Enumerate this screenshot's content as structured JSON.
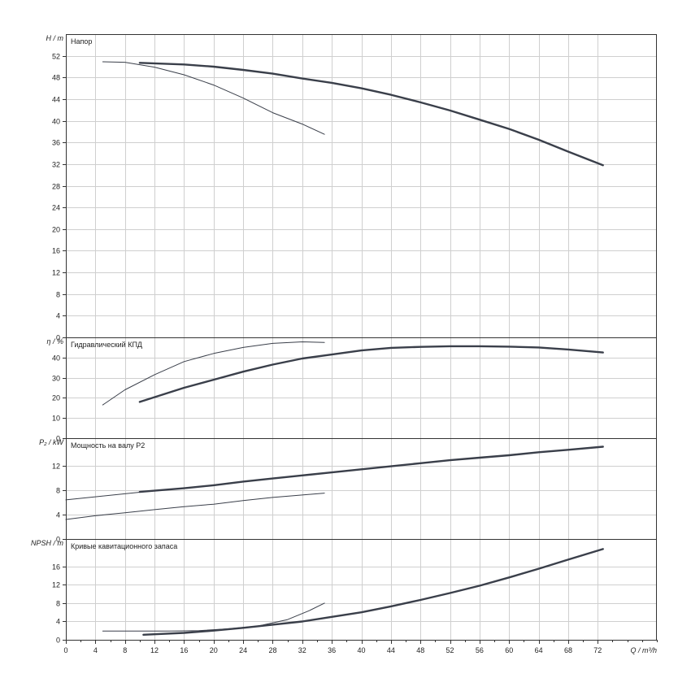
{
  "chart_data": {
    "type": "line",
    "x_axis": {
      "label": "Q / m³/h",
      "range": [
        0,
        80
      ],
      "ticks": [
        0,
        4,
        8,
        12,
        16,
        20,
        24,
        28,
        32,
        36,
        40,
        44,
        48,
        52,
        56,
        60,
        64,
        68,
        72
      ],
      "minor_step": 2
    },
    "grid": true,
    "panels": [
      {
        "id": "head",
        "title": "Напор",
        "ylabel": "H / m",
        "ylim": [
          0,
          56
        ],
        "yticks": [
          0,
          4,
          8,
          12,
          16,
          20,
          24,
          28,
          32,
          36,
          40,
          44,
          48,
          52
        ],
        "series": [
          {
            "style": "thick",
            "points": [
              [
                10,
                50.7
              ],
              [
                16,
                50.4
              ],
              [
                20,
                50.0
              ],
              [
                24,
                49.4
              ],
              [
                28,
                48.7
              ],
              [
                32,
                47.8
              ],
              [
                36,
                47.0
              ],
              [
                40,
                46.0
              ],
              [
                44,
                44.8
              ],
              [
                48,
                43.4
              ],
              [
                52,
                41.9
              ],
              [
                56,
                40.2
              ],
              [
                60,
                38.5
              ],
              [
                64,
                36.5
              ],
              [
                68,
                34.3
              ],
              [
                72.7,
                31.8
              ]
            ]
          },
          {
            "style": "thin",
            "points": [
              [
                5,
                50.9
              ],
              [
                8,
                50.8
              ],
              [
                12,
                49.9
              ],
              [
                16,
                48.5
              ],
              [
                20,
                46.6
              ],
              [
                24,
                44.2
              ],
              [
                28,
                41.5
              ],
              [
                32,
                39.4
              ],
              [
                35,
                37.5
              ]
            ]
          }
        ]
      },
      {
        "id": "efficiency",
        "title": "Гидравлический КПД",
        "ylabel": "η / %",
        "ylim": [
          0,
          50
        ],
        "yticks": [
          0,
          10,
          20,
          30,
          40
        ],
        "series": [
          {
            "style": "thick",
            "points": [
              [
                10,
                18
              ],
              [
                16,
                25
              ],
              [
                20,
                29
              ],
              [
                24,
                33
              ],
              [
                28,
                36.5
              ],
              [
                32,
                39.5
              ],
              [
                36,
                41.5
              ],
              [
                40,
                43.5
              ],
              [
                44,
                44.8
              ],
              [
                48,
                45.3
              ],
              [
                52,
                45.6
              ],
              [
                56,
                45.6
              ],
              [
                60,
                45.4
              ],
              [
                64,
                45.0
              ],
              [
                68,
                44.0
              ],
              [
                72.7,
                42.5
              ]
            ]
          },
          {
            "style": "thin",
            "points": [
              [
                5,
                16.5
              ],
              [
                8,
                24
              ],
              [
                12,
                31.5
              ],
              [
                16,
                38
              ],
              [
                20,
                42
              ],
              [
                24,
                45
              ],
              [
                28,
                47
              ],
              [
                32,
                47.8
              ],
              [
                35,
                47.5
              ]
            ]
          }
        ]
      },
      {
        "id": "power",
        "title": "Мощность на валу P2",
        "ylabel": "P₂ / kW",
        "ylim": [
          0,
          16.5
        ],
        "yticks": [
          0,
          4,
          8,
          12
        ],
        "series": [
          {
            "style": "thick",
            "points": [
              [
                10,
                7.7
              ],
              [
                16,
                8.3
              ],
              [
                20,
                8.8
              ],
              [
                24,
                9.4
              ],
              [
                28,
                9.9
              ],
              [
                32,
                10.4
              ],
              [
                36,
                10.9
              ],
              [
                40,
                11.4
              ],
              [
                44,
                11.9
              ],
              [
                48,
                12.4
              ],
              [
                52,
                12.9
              ],
              [
                56,
                13.3
              ],
              [
                60,
                13.7
              ],
              [
                64,
                14.2
              ],
              [
                68,
                14.6
              ],
              [
                72.7,
                15.1
              ]
            ]
          },
          {
            "style": "thin",
            "points": [
              [
                0,
                3.2
              ],
              [
                4,
                3.8
              ],
              [
                8,
                4.3
              ],
              [
                12,
                4.8
              ],
              [
                16,
                5.3
              ],
              [
                20,
                5.7
              ],
              [
                24,
                6.3
              ],
              [
                28,
                6.8
              ],
              [
                32,
                7.2
              ],
              [
                35,
                7.5
              ]
            ]
          },
          {
            "style": "thin",
            "points": [
              [
                0,
                6.4
              ],
              [
                4,
                6.9
              ],
              [
                8,
                7.4
              ],
              [
                12,
                7.9
              ],
              [
                16,
                8.3
              ]
            ]
          }
        ]
      },
      {
        "id": "npsh",
        "title": "Кривые кавитационного запаса",
        "ylabel": "NPSH / m",
        "ylim": [
          0,
          22
        ],
        "yticks": [
          0,
          4,
          8,
          12,
          16
        ],
        "series": [
          {
            "style": "thick",
            "points": [
              [
                10.5,
                1.1
              ],
              [
                16,
                1.5
              ],
              [
                20,
                2.0
              ],
              [
                24,
                2.6
              ],
              [
                28,
                3.3
              ],
              [
                32,
                4.0
              ],
              [
                36,
                5.0
              ],
              [
                40,
                6.0
              ],
              [
                44,
                7.3
              ],
              [
                48,
                8.7
              ],
              [
                52,
                10.2
              ],
              [
                56,
                11.8
              ],
              [
                60,
                13.6
              ],
              [
                64,
                15.5
              ],
              [
                68,
                17.5
              ],
              [
                72.7,
                19.8
              ]
            ]
          },
          {
            "style": "thin",
            "points": [
              [
                5,
                1.9
              ],
              [
                10,
                1.9
              ],
              [
                14,
                1.9
              ],
              [
                18,
                2.0
              ],
              [
                22,
                2.4
              ],
              [
                26,
                3.0
              ],
              [
                30,
                4.4
              ],
              [
                33,
                6.4
              ],
              [
                35,
                8.0
              ]
            ]
          }
        ]
      }
    ]
  }
}
